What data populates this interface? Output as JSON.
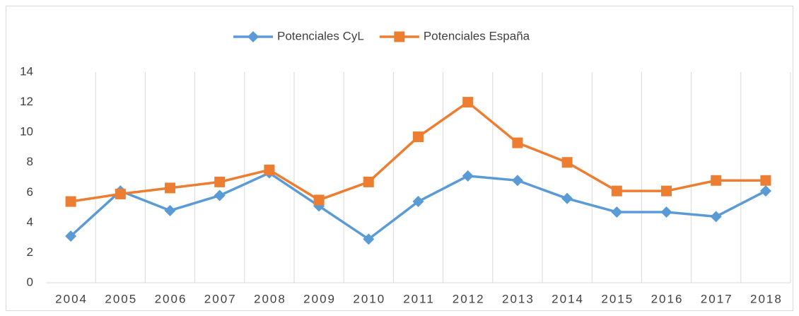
{
  "chart_data": {
    "type": "line",
    "categories": [
      "2004",
      "2005",
      "2006",
      "2007",
      "2008",
      "2009",
      "2010",
      "2011",
      "2012",
      "2013",
      "2014",
      "2015",
      "2016",
      "2017",
      "2018"
    ],
    "series": [
      {
        "name": "Potenciales CyL",
        "color": "#5b9bd5",
        "marker": "diamond",
        "values": [
          3.1,
          6.1,
          4.8,
          5.8,
          7.3,
          5.1,
          2.9,
          5.4,
          7.1,
          6.8,
          5.6,
          4.7,
          4.7,
          4.4,
          6.1
        ]
      },
      {
        "name": "Potenciales España",
        "color": "#ed7d31",
        "marker": "square",
        "values": [
          5.4,
          5.9,
          6.3,
          6.7,
          7.5,
          5.5,
          6.7,
          9.7,
          12.0,
          9.3,
          8.0,
          6.1,
          6.1,
          6.8,
          6.8
        ]
      }
    ],
    "ylim": [
      0,
      14
    ],
    "yticks": [
      0,
      2,
      4,
      6,
      8,
      10,
      12,
      14
    ],
    "legend": "top",
    "grid": "x"
  }
}
